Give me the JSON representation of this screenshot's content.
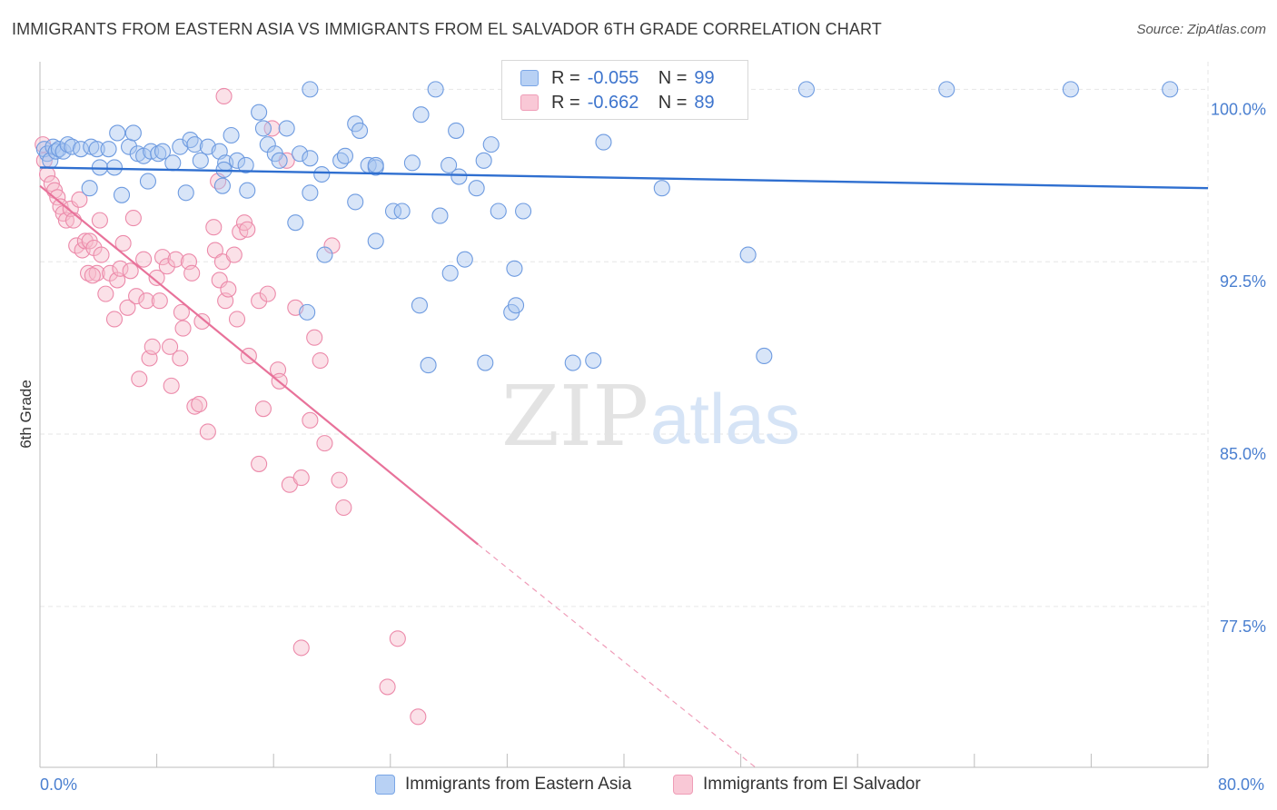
{
  "title": "IMMIGRANTS FROM EASTERN ASIA VS IMMIGRANTS FROM EL SALVADOR 6TH GRADE CORRELATION CHART",
  "source": "Source: ZipAtlas.com",
  "watermark": {
    "zip": "ZIP",
    "atlas": "atlas"
  },
  "legend": {
    "blue": {
      "r_label": "R =",
      "r_value": "-0.055",
      "n_label": "N =",
      "n_value": "99"
    },
    "pink": {
      "r_label": "R =",
      "r_value": "-0.662",
      "n_label": "N =",
      "n_value": "89"
    }
  },
  "bottom_legend": {
    "blue": "Immigrants from Eastern Asia",
    "pink": "Immigrants from El Salvador"
  },
  "colors": {
    "blue_fill": "#a9c6ef",
    "blue_stroke": "#6e9be0",
    "blue_line": "#2f6fd0",
    "pink_fill": "#f7bccd",
    "pink_stroke": "#ec8aaa",
    "pink_line": "#e8729a",
    "tick_text": "#4a7fd0"
  },
  "chart_data": {
    "type": "scatter",
    "title": "IMMIGRANTS FROM EASTERN ASIA VS IMMIGRANTS FROM EL SALVADOR 6TH GRADE CORRELATION CHART",
    "xlabel": "",
    "ylabel": "6th Grade",
    "xlim": [
      0,
      80
    ],
    "ylim": [
      70.5,
      101.2
    ],
    "x_tick_labels": [
      "0.0%",
      "80.0%"
    ],
    "y_ticks": [
      100.0,
      92.5,
      85.0,
      77.5
    ],
    "y_tick_labels": [
      "100.0%",
      "92.5%",
      "85.0%",
      "77.5%"
    ],
    "grid": true,
    "legend_position": "top-center",
    "series": [
      {
        "name": "Immigrants from Eastern Asia",
        "color": "#a9c6ef",
        "r": -0.055,
        "n": 99,
        "trend": {
          "x": [
            0,
            80
          ],
          "y": [
            96.6,
            95.7
          ]
        },
        "points": [
          [
            0.3,
            97.4
          ],
          [
            0.5,
            97.2
          ],
          [
            0.7,
            96.9
          ],
          [
            0.9,
            97.5
          ],
          [
            1.1,
            97.3
          ],
          [
            1.3,
            97.4
          ],
          [
            1.6,
            97.3
          ],
          [
            1.9,
            97.6
          ],
          [
            2.2,
            97.5
          ],
          [
            2.8,
            97.4
          ],
          [
            3.5,
            97.5
          ],
          [
            3.9,
            97.4
          ],
          [
            4.7,
            97.4
          ],
          [
            5.1,
            96.6
          ],
          [
            5.3,
            98.1
          ],
          [
            6.1,
            97.5
          ],
          [
            6.4,
            98.1
          ],
          [
            6.7,
            97.2
          ],
          [
            7.1,
            97.1
          ],
          [
            7.6,
            97.3
          ],
          [
            8.1,
            97.2
          ],
          [
            8.4,
            97.3
          ],
          [
            9.1,
            96.8
          ],
          [
            9.6,
            97.5
          ],
          [
            10.3,
            97.8
          ],
          [
            10.6,
            97.6
          ],
          [
            11.0,
            96.9
          ],
          [
            11.5,
            97.5
          ],
          [
            12.3,
            97.3
          ],
          [
            12.7,
            96.8
          ],
          [
            13.1,
            98.0
          ],
          [
            13.5,
            96.9
          ],
          [
            14.1,
            96.7
          ],
          [
            15.0,
            99.0
          ],
          [
            15.3,
            98.3
          ],
          [
            15.6,
            97.6
          ],
          [
            16.1,
            97.2
          ],
          [
            16.4,
            96.9
          ],
          [
            16.9,
            98.3
          ],
          [
            17.5,
            94.2
          ],
          [
            17.8,
            97.2
          ],
          [
            18.5,
            97.0
          ],
          [
            19.3,
            96.3
          ],
          [
            20.6,
            96.9
          ],
          [
            20.9,
            97.1
          ],
          [
            21.6,
            98.5
          ],
          [
            21.9,
            98.2
          ],
          [
            22.5,
            96.7
          ],
          [
            23.0,
            96.6
          ],
          [
            24.2,
            94.7
          ],
          [
            24.8,
            94.7
          ],
          [
            25.5,
            96.8
          ],
          [
            26.1,
            98.9
          ],
          [
            27.4,
            94.5
          ],
          [
            28.0,
            96.7
          ],
          [
            28.7,
            96.2
          ],
          [
            29.1,
            92.6
          ],
          [
            29.9,
            95.7
          ],
          [
            30.4,
            96.9
          ],
          [
            30.9,
            97.6
          ],
          [
            31.4,
            94.7
          ],
          [
            32.5,
            92.2
          ],
          [
            33.1,
            94.7
          ],
          [
            4.1,
            96.6
          ],
          [
            3.4,
            95.7
          ],
          [
            5.6,
            95.4
          ],
          [
            7.4,
            96.0
          ],
          [
            10.0,
            95.5
          ],
          [
            12.5,
            95.8
          ],
          [
            14.2,
            95.6
          ],
          [
            18.5,
            95.5
          ],
          [
            19.5,
            92.8
          ],
          [
            21.6,
            95.1
          ],
          [
            23.0,
            93.4
          ],
          [
            26.0,
            90.6
          ],
          [
            26.6,
            88.0
          ],
          [
            28.1,
            92.0
          ],
          [
            30.5,
            88.1
          ],
          [
            32.3,
            90.3
          ],
          [
            32.6,
            90.6
          ],
          [
            36.5,
            88.1
          ],
          [
            37.9,
            88.2
          ],
          [
            38.6,
            97.7
          ],
          [
            42.6,
            95.7
          ],
          [
            48.5,
            92.8
          ],
          [
            49.6,
            88.4
          ],
          [
            18.3,
            90.3
          ],
          [
            12.6,
            96.5
          ],
          [
            36.6,
            100.0
          ],
          [
            39.8,
            100.0
          ],
          [
            18.5,
            100.0
          ],
          [
            27.1,
            100.0
          ],
          [
            37.4,
            100.0
          ],
          [
            52.5,
            100.0
          ],
          [
            62.1,
            100.0
          ],
          [
            70.6,
            100.0
          ],
          [
            77.4,
            100.0
          ],
          [
            28.5,
            98.2
          ],
          [
            23.0,
            96.7
          ]
        ]
      },
      {
        "name": "Immigrants from El Salvador",
        "color": "#f7bccd",
        "r": -0.662,
        "n": 89,
        "trend": {
          "x": [
            0,
            30
          ],
          "y": [
            95.8,
            80.2
          ]
        },
        "trend_dashed": {
          "x": [
            30,
            49
          ],
          "y": [
            80.2,
            70.5
          ]
        },
        "points": [
          [
            0.2,
            97.6
          ],
          [
            0.3,
            96.9
          ],
          [
            0.5,
            96.3
          ],
          [
            0.8,
            95.9
          ],
          [
            1.0,
            95.6
          ],
          [
            1.2,
            95.3
          ],
          [
            1.4,
            94.9
          ],
          [
            1.6,
            94.6
          ],
          [
            1.8,
            94.3
          ],
          [
            2.1,
            94.8
          ],
          [
            2.3,
            94.3
          ],
          [
            2.5,
            93.2
          ],
          [
            2.7,
            95.2
          ],
          [
            2.9,
            93.0
          ],
          [
            3.1,
            93.4
          ],
          [
            3.3,
            92.0
          ],
          [
            3.4,
            93.4
          ],
          [
            3.7,
            93.1
          ],
          [
            3.9,
            92.0
          ],
          [
            4.1,
            94.3
          ],
          [
            4.2,
            92.8
          ],
          [
            4.5,
            91.1
          ],
          [
            4.8,
            92.0
          ],
          [
            5.1,
            90.0
          ],
          [
            5.3,
            91.7
          ],
          [
            5.5,
            92.2
          ],
          [
            5.7,
            93.3
          ],
          [
            6.0,
            90.5
          ],
          [
            6.2,
            92.1
          ],
          [
            6.4,
            94.4
          ],
          [
            6.6,
            91.0
          ],
          [
            6.8,
            87.4
          ],
          [
            7.1,
            92.6
          ],
          [
            7.3,
            90.8
          ],
          [
            7.5,
            88.3
          ],
          [
            7.7,
            88.8
          ],
          [
            8.0,
            91.8
          ],
          [
            8.2,
            90.8
          ],
          [
            8.4,
            92.7
          ],
          [
            8.7,
            92.3
          ],
          [
            8.9,
            88.8
          ],
          [
            9.0,
            87.1
          ],
          [
            9.3,
            92.6
          ],
          [
            9.6,
            88.3
          ],
          [
            9.8,
            89.6
          ],
          [
            10.2,
            92.5
          ],
          [
            10.4,
            92.0
          ],
          [
            10.6,
            86.2
          ],
          [
            10.9,
            86.3
          ],
          [
            11.1,
            89.9
          ],
          [
            11.5,
            85.1
          ],
          [
            11.9,
            94.0
          ],
          [
            12.0,
            93.0
          ],
          [
            12.3,
            91.7
          ],
          [
            12.5,
            92.5
          ],
          [
            12.7,
            90.8
          ],
          [
            12.9,
            91.3
          ],
          [
            13.3,
            92.8
          ],
          [
            13.5,
            90.0
          ],
          [
            13.7,
            93.8
          ],
          [
            14.0,
            94.2
          ],
          [
            14.3,
            88.4
          ],
          [
            15.0,
            90.8
          ],
          [
            15.3,
            86.1
          ],
          [
            15.6,
            91.1
          ],
          [
            15.9,
            98.3
          ],
          [
            16.3,
            87.8
          ],
          [
            16.4,
            87.3
          ],
          [
            16.9,
            96.9
          ],
          [
            17.1,
            82.8
          ],
          [
            17.5,
            90.5
          ],
          [
            17.9,
            83.1
          ],
          [
            18.5,
            85.6
          ],
          [
            18.8,
            89.2
          ],
          [
            19.2,
            88.2
          ],
          [
            19.5,
            84.6
          ],
          [
            20.0,
            93.2
          ],
          [
            20.5,
            83.0
          ],
          [
            20.8,
            81.8
          ],
          [
            9.7,
            90.3
          ],
          [
            12.2,
            96.0
          ],
          [
            12.6,
            99.7
          ],
          [
            14.2,
            93.9
          ],
          [
            17.9,
            75.7
          ],
          [
            24.5,
            76.1
          ],
          [
            23.8,
            74.0
          ],
          [
            25.9,
            72.7
          ],
          [
            15.0,
            83.7
          ],
          [
            3.6,
            91.9
          ]
        ]
      }
    ]
  }
}
